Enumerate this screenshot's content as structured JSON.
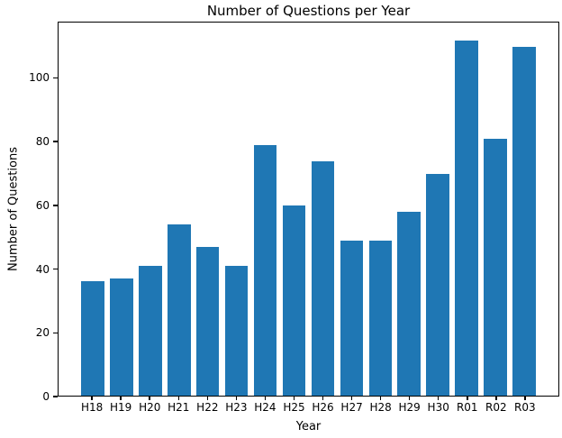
{
  "chart_data": {
    "type": "bar",
    "title": "Number of Questions per Year",
    "xlabel": "Year",
    "ylabel": "Number of Questions",
    "categories": [
      "H18",
      "H19",
      "H20",
      "H21",
      "H22",
      "H23",
      "H24",
      "H25",
      "H26",
      "H27",
      "H28",
      "H29",
      "H30",
      "R01",
      "R02",
      "R03"
    ],
    "values": [
      36,
      37,
      41,
      54,
      47,
      41,
      79,
      60,
      74,
      49,
      49,
      58,
      70,
      112,
      81,
      110
    ],
    "yticks": [
      0,
      20,
      40,
      60,
      80,
      100
    ],
    "ylim": [
      0,
      117.6
    ],
    "bar_color": "#1f77b4",
    "axis_color": "#000000",
    "background_color": "#ffffff",
    "grid": false,
    "legend": "none"
  }
}
